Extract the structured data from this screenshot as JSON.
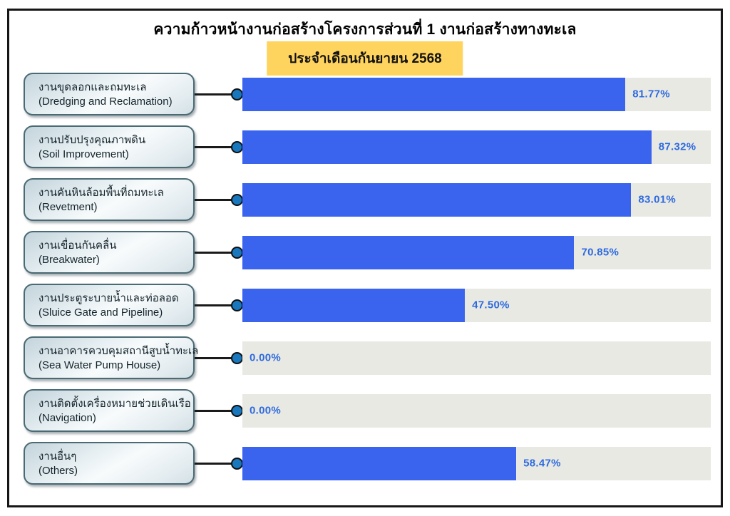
{
  "title": "ความก้าวหน้างานก่อสร้างโครงการส่วนที่ 1 งานก่อสร้างทางทะเล",
  "subtitle": "ประจำเดือนกันยายน 2568",
  "colors": {
    "bar": "#3a63ee",
    "track": "#e9e9e3",
    "value_text": "#2d6ae0",
    "node_fill": "#1877bd",
    "subtitle_bg": "#ffd45e",
    "box_border": "#4a6a74",
    "frame_border": "#161616"
  },
  "rows": [
    {
      "label_th": "งานขุดลอกและถมทะเล",
      "label_en": "(Dredging and Reclamation)",
      "value": 81.77,
      "value_label": "81.77%"
    },
    {
      "label_th": "งานปรับปรุงคุณภาพดิน",
      "label_en": "(Soil Improvement)",
      "value": 87.32,
      "value_label": "87.32%"
    },
    {
      "label_th": "งานคันหินล้อมพื้นที่ถมทะเล",
      "label_en": "(Revetment)",
      "value": 83.01,
      "value_label": "83.01%"
    },
    {
      "label_th": "งานเขื่อนกันคลื่น",
      "label_en": "(Breakwater)",
      "value": 70.85,
      "value_label": "70.85%"
    },
    {
      "label_th": "งานประตูระบายน้ำและท่อลอด",
      "label_en": "(Sluice Gate and Pipeline)",
      "value": 47.5,
      "value_label": "47.50%"
    },
    {
      "label_th": "งานอาคารควบคุมสถานีสูบน้ำทะเล",
      "label_en": "(Sea Water Pump House)",
      "value": 0.0,
      "value_label": "0.00%"
    },
    {
      "label_th": "งานติดตั้งเครื่องหมายช่วยเดินเรือ",
      "label_en": "(Navigation)",
      "value": 0.0,
      "value_label": "0.00%"
    },
    {
      "label_th": "งานอื่นๆ",
      "label_en": "(Others)",
      "value": 58.47,
      "value_label": "58.47%"
    }
  ],
  "chart_data": {
    "type": "bar",
    "orientation": "horizontal",
    "title": "ความก้าวหน้างานก่อสร้างโครงการส่วนที่ 1 งานก่อสร้างทางทะเล",
    "subtitle": "ประจำเดือนกันยายน 2568",
    "categories": [
      "งานขุดลอกและถมทะเล (Dredging and Reclamation)",
      "งานปรับปรุงคุณภาพดิน (Soil Improvement)",
      "งานคันหินล้อมพื้นที่ถมทะเล (Revetment)",
      "งานเขื่อนกันคลื่น (Breakwater)",
      "งานประตูระบายน้ำและท่อลอด (Sluice Gate and Pipeline)",
      "งานอาคารควบคุมสถานีสูบน้ำทะเล (Sea Water Pump House)",
      "งานติดตั้งเครื่องหมายช่วยเดินเรือ (Navigation)",
      "งานอื่นๆ (Others)"
    ],
    "values": [
      81.77,
      87.32,
      83.01,
      70.85,
      47.5,
      0.0,
      0.0,
      58.47
    ],
    "value_labels": [
      "81.77%",
      "87.32%",
      "83.01%",
      "70.85%",
      "47.50%",
      "0.00%",
      "0.00%",
      "58.47%"
    ],
    "xlabel": "",
    "ylabel": "",
    "xlim": [
      0,
      100
    ],
    "grid": false,
    "legend": false,
    "data_labels": "outside-end"
  }
}
